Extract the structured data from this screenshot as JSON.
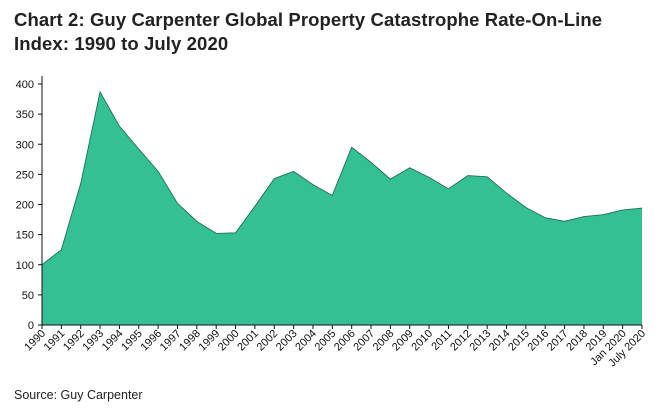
{
  "title": "Chart 2: Guy Carpenter Global Property Catastrophe Rate-On-Line Index: 1990 to July 2020",
  "source": "Source: Guy Carpenter",
  "colors": {
    "fill": "#35bf94",
    "stroke": "#1f6f5a",
    "axis": "#111111"
  },
  "chart_data": {
    "type": "area",
    "title": "Chart 2: Guy Carpenter Global Property Catastrophe Rate-On-Line Index: 1990 to July 2020",
    "xlabel": "",
    "ylabel": "",
    "ylim": [
      0,
      400
    ],
    "yticks": [
      0,
      50,
      100,
      150,
      200,
      250,
      300,
      350,
      400
    ],
    "grid": false,
    "legend": "none",
    "categories": [
      "1990",
      "1991",
      "1992",
      "1993",
      "1994",
      "1995",
      "1996",
      "1997",
      "1998",
      "1999",
      "2000",
      "2001",
      "2002",
      "2003",
      "2004",
      "2005",
      "2006",
      "2007",
      "2008",
      "2009",
      "2010",
      "2011",
      "2012",
      "2013",
      "2014",
      "2015",
      "2016",
      "2017",
      "2018",
      "2019",
      "Jan 2020",
      "July 2020"
    ],
    "series": [
      {
        "name": "Rate-On-Line Index",
        "values": [
          100,
          125,
          235,
          387,
          330,
          292,
          255,
          202,
          172,
          152,
          153,
          197,
          243,
          255,
          233,
          215,
          295,
          270,
          242,
          261,
          245,
          226,
          248,
          246,
          219,
          195,
          178,
          172,
          180,
          183,
          191,
          194
        ]
      }
    ]
  }
}
